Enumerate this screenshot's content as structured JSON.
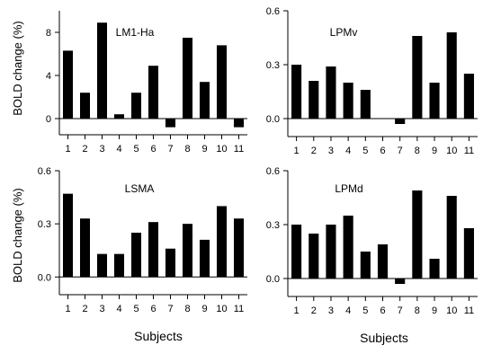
{
  "figure": {
    "ylabel": "BOLD change (%)",
    "xlabel": "Subjects"
  },
  "chart_data": [
    {
      "type": "bar",
      "title": "LM1-Ha",
      "categories": [
        "1",
        "2",
        "3",
        "4",
        "5",
        "6",
        "7",
        "8",
        "9",
        "10",
        "11"
      ],
      "values": [
        6.3,
        2.4,
        8.9,
        0.4,
        2.4,
        4.9,
        -0.8,
        7.5,
        3.4,
        6.8,
        -0.8
      ],
      "yticks": [
        "0",
        "4",
        "8"
      ],
      "ylim": [
        -1.5,
        10
      ],
      "ylabel": "BOLD change (%)",
      "xlabel": "",
      "grid": false,
      "bar_color": "#000000"
    },
    {
      "type": "bar",
      "title": "LPMv",
      "categories": [
        "1",
        "2",
        "3",
        "4",
        "5",
        "6",
        "7",
        "8",
        "9",
        "10",
        "11"
      ],
      "values": [
        0.3,
        0.21,
        0.29,
        0.2,
        0.16,
        0,
        -0.03,
        0.46,
        0.2,
        0.48,
        0.25
      ],
      "yticks": [
        "0.0",
        "0.3",
        "0.6"
      ],
      "ylim": [
        -0.1,
        0.6
      ],
      "ylabel": "",
      "xlabel": "",
      "grid": false,
      "bar_color": "#000000"
    },
    {
      "type": "bar",
      "title": "LSMA",
      "categories": [
        "1",
        "2",
        "3",
        "4",
        "5",
        "6",
        "7",
        "8",
        "9",
        "10",
        "11"
      ],
      "values": [
        0.47,
        0.33,
        0.13,
        0.13,
        0.25,
        0.31,
        0.16,
        0.3,
        0.21,
        0.4,
        0.33
      ],
      "yticks": [
        "0.0",
        "0.3",
        "0.6"
      ],
      "ylim": [
        -0.1,
        0.6
      ],
      "ylabel": "BOLD change (%)",
      "xlabel": "Subjects",
      "grid": false,
      "bar_color": "#000000"
    },
    {
      "type": "bar",
      "title": "LPMd",
      "categories": [
        "1",
        "2",
        "3",
        "4",
        "5",
        "6",
        "7",
        "8",
        "9",
        "10",
        "11"
      ],
      "values": [
        0.3,
        0.25,
        0.3,
        0.35,
        0.15,
        0.19,
        -0.03,
        0.49,
        0.11,
        0.46,
        0.28
      ],
      "yticks": [
        "0.0",
        "0.3",
        "0.6"
      ],
      "ylim": [
        -0.1,
        0.6
      ],
      "ylabel": "",
      "xlabel": "Subjects",
      "grid": false,
      "bar_color": "#000000"
    }
  ]
}
